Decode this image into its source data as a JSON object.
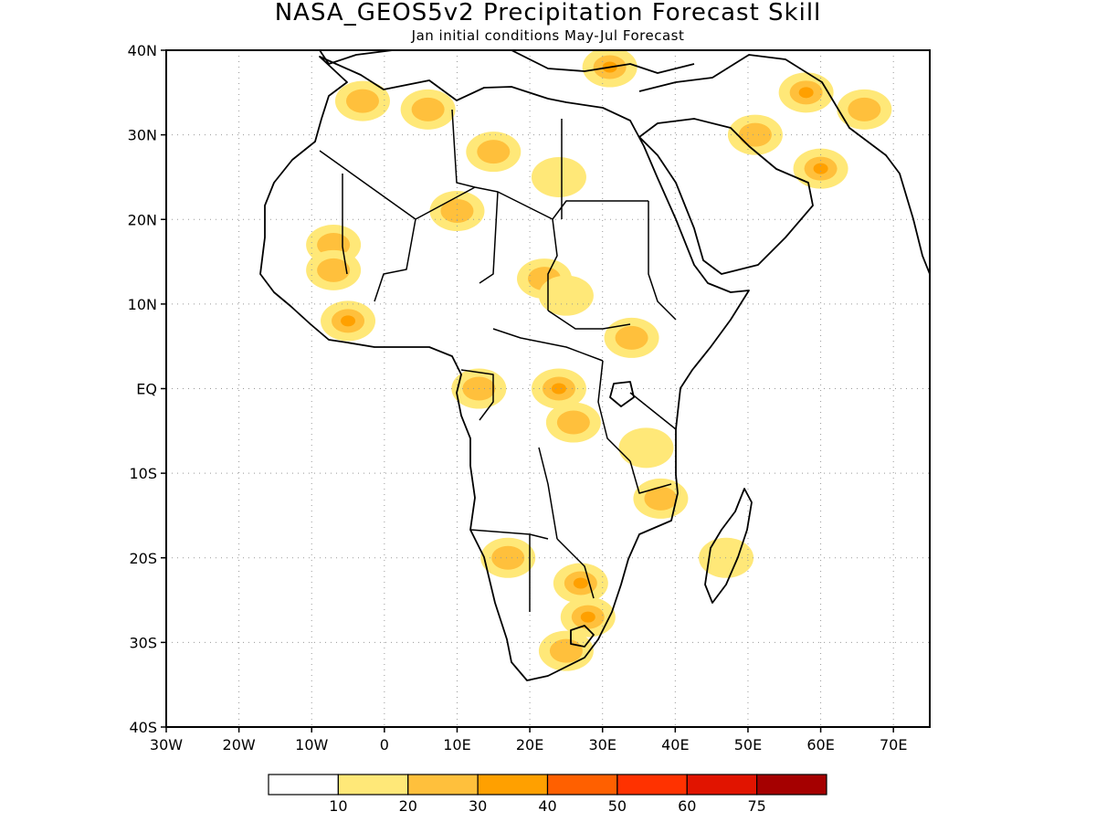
{
  "figure": {
    "title": "NASA_GEOS5v2 Precipitation Forecast Skill",
    "subtitle": "Jan initial conditions  May-Jul Forecast"
  },
  "map": {
    "region": "Africa",
    "lon_range": [
      -30,
      75
    ],
    "lat_range": [
      -40,
      40
    ],
    "lat_ticks": [
      "40N",
      "30N",
      "20N",
      "10N",
      "EQ",
      "10S",
      "20S",
      "30S",
      "40S"
    ],
    "lon_ticks": [
      "30W",
      "20W",
      "10W",
      "0",
      "10E",
      "20E",
      "30E",
      "40E",
      "50E",
      "60E",
      "70E"
    ],
    "grid": true,
    "field_patches": [
      {
        "lon": -3,
        "lat": 34,
        "level": 2
      },
      {
        "lon": 6,
        "lat": 33,
        "level": 2
      },
      {
        "lon": 15,
        "lat": 28,
        "level": 2
      },
      {
        "lon": 24,
        "lat": 25,
        "level": 1
      },
      {
        "lon": 31,
        "lat": 38,
        "level": 3
      },
      {
        "lon": 58,
        "lat": 35,
        "level": 3
      },
      {
        "lon": 66,
        "lat": 33,
        "level": 2
      },
      {
        "lon": 60,
        "lat": 26,
        "level": 3
      },
      {
        "lon": 51,
        "lat": 30,
        "level": 2
      },
      {
        "lon": -7,
        "lat": 17,
        "level": 2
      },
      {
        "lon": -7,
        "lat": 14,
        "level": 2
      },
      {
        "lon": -5,
        "lat": 8,
        "level": 3
      },
      {
        "lon": 10,
        "lat": 21,
        "level": 2
      },
      {
        "lon": 22,
        "lat": 13,
        "level": 2
      },
      {
        "lon": 25,
        "lat": 11,
        "level": 1
      },
      {
        "lon": 34,
        "lat": 6,
        "level": 2
      },
      {
        "lon": 24,
        "lat": 0,
        "level": 3
      },
      {
        "lon": 26,
        "lat": -4,
        "level": 2
      },
      {
        "lon": 13,
        "lat": 0,
        "level": 2
      },
      {
        "lon": 36,
        "lat": -7,
        "level": 1
      },
      {
        "lon": 38,
        "lat": -13,
        "level": 2
      },
      {
        "lon": 17,
        "lat": -20,
        "level": 2
      },
      {
        "lon": 27,
        "lat": -23,
        "level": 3
      },
      {
        "lon": 28,
        "lat": -27,
        "level": 3
      },
      {
        "lon": 25,
        "lat": -31,
        "level": 2
      },
      {
        "lon": 47,
        "lat": -20,
        "level": 1
      }
    ]
  },
  "legend": {
    "colors": [
      "#ffffff",
      "#ffe878",
      "#ffc03c",
      "#ffa000",
      "#ff6000",
      "#ff3200",
      "#e11400",
      "#a50000"
    ],
    "labels": [
      "10",
      "20",
      "30",
      "40",
      "50",
      "60",
      "75"
    ]
  }
}
